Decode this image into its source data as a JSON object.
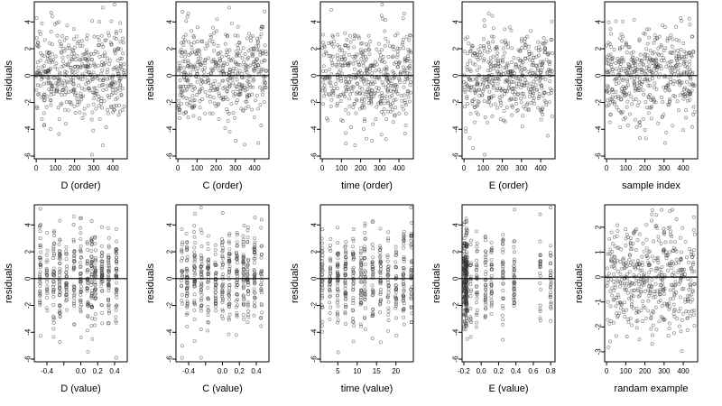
{
  "chart_data": [
    {
      "type": "scatter",
      "xlabel": "D (order)",
      "ylabel": "residuals",
      "xlim": [
        -10,
        475
      ],
      "ylim": [
        -6.2,
        5.5
      ],
      "xticks": [
        0,
        100,
        200,
        300,
        400
      ],
      "xtick_labels": [
        "0",
        "100",
        "200",
        "300",
        "400"
      ],
      "yticks": [
        -6,
        -4,
        -2,
        0,
        2,
        4
      ],
      "ytick_labels": [
        "-6",
        "-4",
        "-2",
        "0",
        "2",
        "4"
      ],
      "hline": 0,
      "distribution": "uniform_x",
      "x_range": [
        0,
        462
      ],
      "n": 470,
      "seed": 11
    },
    {
      "type": "scatter",
      "xlabel": "C (order)",
      "ylabel": "residuals",
      "xlim": [
        -10,
        475
      ],
      "ylim": [
        -6.2,
        5.5
      ],
      "xticks": [
        0,
        100,
        200,
        300,
        400
      ],
      "xtick_labels": [
        "0",
        "100",
        "200",
        "300",
        "400"
      ],
      "yticks": [
        -6,
        -4,
        -2,
        0,
        2,
        4
      ],
      "ytick_labels": [
        "-6",
        "-4",
        "-2",
        "0",
        "2",
        "4"
      ],
      "hline": 0,
      "distribution": "uniform_x",
      "x_range": [
        0,
        462
      ],
      "n": 470,
      "seed": 23
    },
    {
      "type": "scatter",
      "xlabel": "time (order)",
      "ylabel": "residuals",
      "xlim": [
        -10,
        475
      ],
      "ylim": [
        -6.2,
        5.5
      ],
      "xticks": [
        0,
        100,
        200,
        300,
        400
      ],
      "xtick_labels": [
        "0",
        "100",
        "200",
        "300",
        "400"
      ],
      "yticks": [
        -6,
        -4,
        -2,
        0,
        2,
        4
      ],
      "ytick_labels": [
        "-6",
        "-4",
        "-2",
        "0",
        "2",
        "4"
      ],
      "hline": 0,
      "distribution": "uniform_x",
      "x_range": [
        0,
        462
      ],
      "n": 470,
      "seed": 37
    },
    {
      "type": "scatter",
      "xlabel": "E (order)",
      "ylabel": "residuals",
      "xlim": [
        -10,
        475
      ],
      "ylim": [
        -6.2,
        5.5
      ],
      "xticks": [
        0,
        100,
        200,
        300,
        400
      ],
      "xtick_labels": [
        "0",
        "100",
        "200",
        "300",
        "400"
      ],
      "yticks": [
        -6,
        -4,
        -2,
        0,
        2,
        4
      ],
      "ytick_labels": [
        "-6",
        "-4",
        "-2",
        "0",
        "2",
        "4"
      ],
      "hline": 0,
      "distribution": "uniform_x",
      "x_range": [
        0,
        462
      ],
      "n": 470,
      "seed": 41
    },
    {
      "type": "scatter",
      "xlabel": "sample index",
      "ylabel": "residuals",
      "xlim": [
        -10,
        475
      ],
      "ylim": [
        -6.2,
        5.5
      ],
      "xticks": [
        0,
        100,
        200,
        300,
        400
      ],
      "xtick_labels": [
        "0",
        "100",
        "200",
        "300",
        "400"
      ],
      "yticks": [
        -6,
        -4,
        -2,
        0,
        2,
        4
      ],
      "ytick_labels": [
        "-6",
        "-4",
        "-2",
        "0",
        "2",
        "4"
      ],
      "hline": 0,
      "distribution": "uniform_x",
      "x_range": [
        0,
        462
      ],
      "n": 470,
      "seed": 53
    },
    {
      "type": "scatter",
      "xlabel": "D (value)",
      "ylabel": "residuals",
      "xlim": [
        -0.55,
        0.55
      ],
      "ylim": [
        -6.2,
        5.5
      ],
      "xticks": [
        -0.4,
        -0.2,
        0,
        0.2,
        0.4
      ],
      "xtick_labels": [
        "-0.4",
        "",
        "0.0",
        "0.2",
        "0.4"
      ],
      "yticks": [
        -6,
        -4,
        -2,
        0,
        2,
        4
      ],
      "ytick_labels": [
        "-6",
        "-4",
        "-2",
        "0",
        "2",
        "4"
      ],
      "hline": 0,
      "distribution": "clustered_x",
      "x_levels": [
        -0.48,
        -0.4,
        -0.32,
        -0.25,
        -0.17,
        -0.08,
        0,
        0.08,
        0.13,
        0.17,
        0.25,
        0.33,
        0.42
      ],
      "n": 470,
      "seed": 61
    },
    {
      "type": "scatter",
      "xlabel": "C (value)",
      "ylabel": "residuals",
      "xlim": [
        -0.55,
        0.55
      ],
      "ylim": [
        -6.2,
        5.5
      ],
      "xticks": [
        -0.4,
        -0.2,
        0,
        0.2,
        0.4
      ],
      "xtick_labels": [
        "-0.4",
        "",
        "0.0",
        "0.2",
        "0.4"
      ],
      "yticks": [
        -6,
        -4,
        -2,
        0,
        2,
        4
      ],
      "ytick_labels": [
        "-6",
        "-4",
        "-2",
        "0",
        "2",
        "4"
      ],
      "hline": 0,
      "distribution": "clustered_x",
      "x_levels": [
        -0.48,
        -0.42,
        -0.33,
        -0.25,
        -0.17,
        -0.08,
        0,
        0.08,
        0.17,
        0.25,
        0.3,
        0.38,
        0.46
      ],
      "n": 470,
      "seed": 73
    },
    {
      "type": "scatter",
      "xlabel": "time (value)",
      "ylabel": "residuals",
      "xlim": [
        0.5,
        24.5
      ],
      "ylim": [
        -6.2,
        5.5
      ],
      "xticks": [
        5,
        10,
        15,
        20
      ],
      "xtick_labels": [
        "5",
        "10",
        "15",
        "20"
      ],
      "yticks": [
        -6,
        -4,
        -2,
        0,
        2,
        4
      ],
      "ytick_labels": [
        "-6",
        "-4",
        "-2",
        "0",
        "2",
        "4"
      ],
      "hline": 0,
      "distribution": "clustered_x",
      "x_levels": [
        1,
        3,
        5,
        7,
        9,
        11,
        12,
        14,
        16,
        18,
        20,
        22,
        24
      ],
      "n": 470,
      "seed": 89
    },
    {
      "type": "scatter",
      "xlabel": "E (value)",
      "ylabel": "residuals",
      "xlim": [
        -0.22,
        0.85
      ],
      "ylim": [
        -6.2,
        5.5
      ],
      "xticks": [
        -0.2,
        0,
        0.2,
        0.4,
        0.6,
        0.8
      ],
      "xtick_labels": [
        "-0.2",
        "0.0",
        "0.2",
        "0.4",
        "0.6",
        "0.8"
      ],
      "yticks": [
        -6,
        -4,
        -2,
        0,
        2,
        4
      ],
      "ytick_labels": [
        "-6",
        "-4",
        "-2",
        "0",
        "2",
        "4"
      ],
      "hline": 0,
      "distribution": "skewed_x",
      "x_levels": [
        -0.17,
        -0.12,
        -0.05,
        0.05,
        0.12,
        0.25,
        0.38,
        0.68,
        0.8
      ],
      "n": 470,
      "seed": 97
    },
    {
      "type": "scatter",
      "xlabel": "randam example",
      "ylabel": "residuals",
      "xlim": [
        -10,
        475
      ],
      "ylim": [
        -3.4,
        2.9
      ],
      "xticks": [
        0,
        100,
        200,
        300,
        400
      ],
      "xtick_labels": [
        "0",
        "100",
        "200",
        "300",
        "400"
      ],
      "yticks": [
        -3,
        -2,
        -1,
        0,
        1,
        2
      ],
      "ytick_labels": [
        "-3",
        "-2",
        "-1",
        "0",
        "1",
        "2"
      ],
      "hline": 0,
      "distribution": "uniform_x",
      "x_range": [
        0,
        462
      ],
      "n": 470,
      "seed": 101
    }
  ]
}
